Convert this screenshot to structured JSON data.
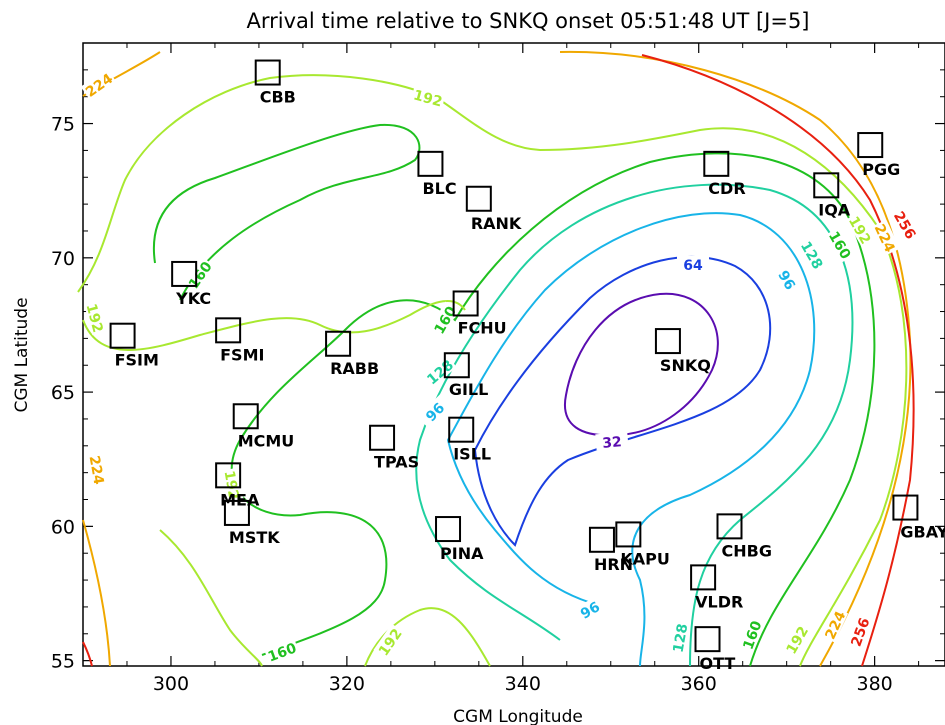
{
  "chart_data": {
    "type": "contour",
    "title": "Arrival time relative to SNKQ onset 05:51:48 UT [J=5]",
    "xlabel": "CGM Longitude",
    "ylabel": "CGM Latitude",
    "xlim": [
      290,
      388
    ],
    "ylim": [
      54.8,
      78.0
    ],
    "xticks": [
      300,
      320,
      340,
      360,
      380
    ],
    "yticks": [
      55,
      60,
      65,
      70,
      75
    ],
    "contour_levels": [
      {
        "value": "32",
        "color": "#5a0db0"
      },
      {
        "value": "64",
        "color": "#1a3fe0"
      },
      {
        "value": "96",
        "color": "#18b4e8"
      },
      {
        "value": "128",
        "color": "#20d0a0"
      },
      {
        "value": "160",
        "color": "#20c020"
      },
      {
        "value": "192",
        "color": "#a8e830"
      },
      {
        "value": "224",
        "color": "#f0a800"
      },
      {
        "value": "256",
        "color": "#e82010"
      }
    ],
    "stations": [
      {
        "name": "CBB",
        "lon": 311.0,
        "lat": 76.9
      },
      {
        "name": "BLC",
        "lon": 329.5,
        "lat": 73.5
      },
      {
        "name": "RANK",
        "lon": 335.0,
        "lat": 72.2
      },
      {
        "name": "CDR",
        "lon": 362.0,
        "lat": 73.5
      },
      {
        "name": "PGG",
        "lon": 379.5,
        "lat": 74.2
      },
      {
        "name": "IQA",
        "lon": 374.5,
        "lat": 72.7
      },
      {
        "name": "YKC",
        "lon": 301.5,
        "lat": 69.4
      },
      {
        "name": "FSIM",
        "lon": 294.5,
        "lat": 67.1
      },
      {
        "name": "FSMI",
        "lon": 306.5,
        "lat": 67.3
      },
      {
        "name": "RABB",
        "lon": 319.0,
        "lat": 66.8
      },
      {
        "name": "FCHU",
        "lon": 333.5,
        "lat": 68.3
      },
      {
        "name": "GILL",
        "lon": 332.5,
        "lat": 66.0
      },
      {
        "name": "SNKQ",
        "lon": 356.5,
        "lat": 66.9
      },
      {
        "name": "MCMU",
        "lon": 308.5,
        "lat": 64.1
      },
      {
        "name": "TPAS",
        "lon": 324.0,
        "lat": 63.3
      },
      {
        "name": "ISLL",
        "lon": 333.0,
        "lat": 63.6
      },
      {
        "name": "MEA",
        "lon": 306.5,
        "lat": 61.9
      },
      {
        "name": "MSTK",
        "lon": 307.5,
        "lat": 60.5
      },
      {
        "name": "PINA",
        "lon": 331.5,
        "lat": 59.9
      },
      {
        "name": "HRN",
        "lon": 349.0,
        "lat": 59.5
      },
      {
        "name": "KAPU",
        "lon": 352.0,
        "lat": 59.7
      },
      {
        "name": "CHBG",
        "lon": 363.5,
        "lat": 60.0
      },
      {
        "name": "GBAY",
        "lon": 383.5,
        "lat": 60.7
      },
      {
        "name": "VLDR",
        "lon": 360.5,
        "lat": 58.1
      },
      {
        "name": "OTT",
        "lon": 361.0,
        "lat": 55.8
      }
    ]
  }
}
